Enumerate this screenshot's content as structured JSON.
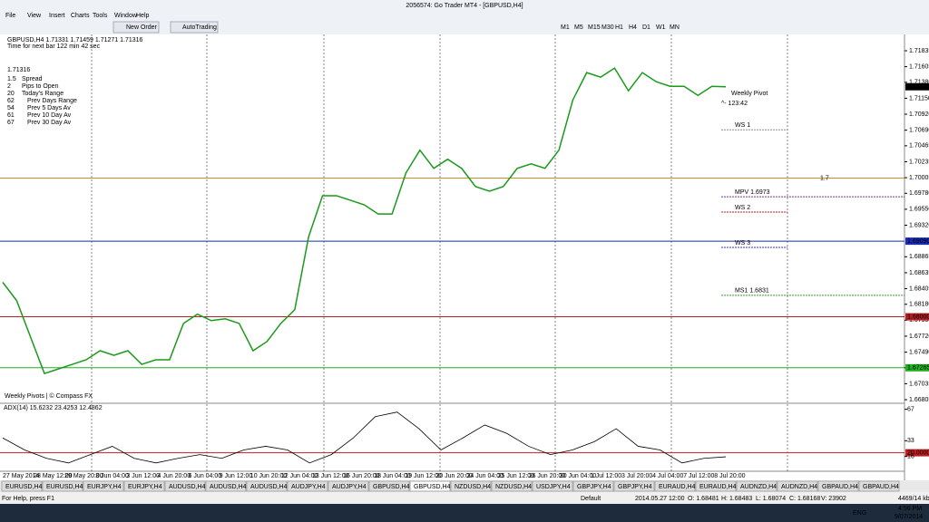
{
  "window": {
    "title": "2056574: Go Trader MT4 - [GBPUSD,H4]"
  },
  "menu": [
    "File",
    "View",
    "Insert",
    "Charts",
    "Tools",
    "Window",
    "Help"
  ],
  "toolbar": {
    "new_order": "New Order",
    "autotrading": "AutoTrading",
    "timeframes": [
      "M1",
      "M5",
      "M15",
      "M30",
      "H1",
      "H4",
      "D1",
      "W1",
      "MN"
    ]
  },
  "chart": {
    "type": "line",
    "header": "GBPUSD,H4 1.71331 1.71459 1.71271 1.71316",
    "next_bar": "Time for next bar 122 min 42 sec",
    "big_price": "1.71316",
    "stats": [
      [
        "1.5",
        "Spread"
      ],
      [
        "2",
        "Pips to Open"
      ],
      [
        "20",
        "Today's Range"
      ],
      [
        "62",
        "Prev Days Range"
      ],
      [
        "54",
        "Prev 5 Days Av"
      ],
      [
        "61",
        "Prev 10 Day Av"
      ],
      [
        "67",
        "Prev 30 Day Av"
      ]
    ],
    "footer_note": "Weekly Pivots | © Compass FX",
    "ylim": [
      1.66753,
      1.7207
    ],
    "yticks": [
      {
        "value": 1.71835,
        "label": "1.71835"
      },
      {
        "value": 1.71605,
        "label": "1.71605"
      },
      {
        "value": 1.7138,
        "label": "1.71380"
      },
      {
        "value": 1.7115,
        "label": "1.71150"
      },
      {
        "value": 1.7092,
        "label": "1.70920"
      },
      {
        "value": 1.7069,
        "label": "1.70690"
      },
      {
        "value": 1.70465,
        "label": "1.70465"
      },
      {
        "value": 1.70235,
        "label": "1.70235"
      },
      {
        "value": 1.70005,
        "label": "1.70005"
      },
      {
        "value": 1.6978,
        "label": "1.69780"
      },
      {
        "value": 1.6955,
        "label": "1.69550"
      },
      {
        "value": 1.6932,
        "label": "1.69320"
      },
      {
        "value": 1.68865,
        "label": "1.68865"
      },
      {
        "value": 1.68635,
        "label": "1.68635"
      },
      {
        "value": 1.68405,
        "label": "1.68405"
      },
      {
        "value": 1.6818,
        "label": "1.68180"
      },
      {
        "value": 1.6795,
        "label": "1.67950"
      },
      {
        "value": 1.6772,
        "label": "1.67720"
      },
      {
        "value": 1.6749,
        "label": "1.67490"
      },
      {
        "value": 1.67265,
        "label": "1.67265"
      },
      {
        "value": 1.67035,
        "label": "1.67035"
      },
      {
        "value": 1.66805,
        "label": "1.66805"
      }
    ],
    "x_labels": [
      "27 May 2014",
      "28 May 12:00",
      "29 May 20:00",
      "3 Jun 04:00",
      "3 Jun 12:00",
      "4 Jun 20:00",
      "6 Jun 04:00",
      "9 Jun 12:00",
      "10 Jun 20:00",
      "12 Jun 04:00",
      "13 Jun 12:00",
      "16 Jun 20:00",
      "18 Jun 04:00",
      "19 Jun 12:00",
      "20 Jun 20:00",
      "24 Jun 04:00",
      "25 Jun 12:00",
      "26 Jun 20:00",
      "30 Jun 04:00",
      "1 Jul 12:00",
      "3 Jul 20:00",
      "4 Jul 04:00",
      "7 Jul 12:00",
      "8 Jul 20:00"
    ],
    "series": [
      {
        "color": "#1a9a1a",
        "values": [
          1.68497,
          1.68234,
          1.67708,
          1.67182,
          1.67248,
          1.67314,
          1.6738,
          1.67511,
          1.67445,
          1.67511,
          1.67314,
          1.6738,
          1.6738,
          1.67905,
          1.68037,
          1.67945,
          1.67971,
          1.67905,
          1.67511,
          1.67642,
          1.67905,
          1.68102,
          1.69154,
          1.69745,
          1.69745,
          1.6968,
          1.69614,
          1.69482,
          1.69482,
          1.70074,
          1.70402,
          1.7014,
          1.70271,
          1.7014,
          1.69877,
          1.69811,
          1.69877,
          1.7014,
          1.70205,
          1.7014,
          1.70402,
          1.71125,
          1.7152,
          1.71454,
          1.71585,
          1.71257,
          1.7152,
          1.71388,
          1.71322,
          1.71322,
          1.71191,
          1.71322,
          1.71316
        ]
      }
    ],
    "horizontal_lines": [
      {
        "value": 1.7,
        "color": "#c8902a",
        "label": "1.7"
      },
      {
        "value": 1.6909,
        "color": "#1a2ab0",
        "label": "1.69090"
      },
      {
        "value": 1.68,
        "color": "#b02020",
        "label": "1.68000"
      },
      {
        "value": 1.67265,
        "color": "#20b020",
        "label": "1.67265"
      }
    ],
    "current_price": {
      "value": 1.71316,
      "label": "1.71316"
    },
    "pivots": [
      {
        "value": 1.6973,
        "label": "MPV  1.6973",
        "color": "#6a3aa0"
      },
      {
        "value": 1.6831,
        "label": "MS1  1.6831",
        "color": "#3a9a3a"
      },
      {
        "value": 1.70695,
        "label": "WS 1",
        "color": "#8a8a8a"
      },
      {
        "value": 1.6951,
        "label": "WS 2",
        "color": "#c02020"
      },
      {
        "value": 1.69,
        "label": "WS 3",
        "color": "#3a3ac0"
      }
    ],
    "weekly_pivot": "Weekly Pivot",
    "countdown": "^- 123:42"
  },
  "adx": {
    "label": "ADX(14) 15.6232 23.4253 12.4862",
    "ylim": [
      0,
      72.5
    ],
    "yticks": [
      67,
      33,
      {
        "value": 20,
        "label": "20.0000"
      },
      16
    ],
    "values": [
      36,
      23,
      14,
      9,
      18,
      27,
      14,
      9,
      14,
      18,
      14,
      23,
      27,
      23,
      9,
      18,
      36,
      59,
      64,
      46,
      23,
      36,
      50,
      41,
      27,
      18,
      23,
      32,
      46,
      27,
      23,
      9,
      14,
      15.6232
    ]
  },
  "tabs": {
    "items": [
      "EURUSD,H4",
      "EURUSD,H4",
      "EURJPY,H4",
      "EURJPY,H4",
      "AUDUSD,H4",
      "AUDUSD,H4",
      "AUDUSD,H4",
      "AUDJPY,H4",
      "AUDJPY,H4",
      "GBPUSD,H4",
      "GBPUSD,H4",
      "NZDUSD,H4",
      "NZDUSD,H4",
      "USDJPY,H4",
      "GBPJPY,H4",
      "GBPJPY,H4",
      "EURAUD,H4",
      "EURAUD,H4",
      "AUDNZD,H4",
      "AUDNZD,H4",
      "GBPAUD,H4",
      "GBPAUD,H4"
    ],
    "active": 10
  },
  "status": [
    "For Help, press F1",
    "Default",
    "2014.05.27 12:00",
    "O: 1.68481",
    "H: 1.68483",
    "L: 1.68074",
    "C: 1.68168",
    "V: 23902",
    "4469/14 kb"
  ],
  "taskbar": {
    "language": "ENG",
    "time": "4:56 PM",
    "date": "9/07/2014"
  }
}
